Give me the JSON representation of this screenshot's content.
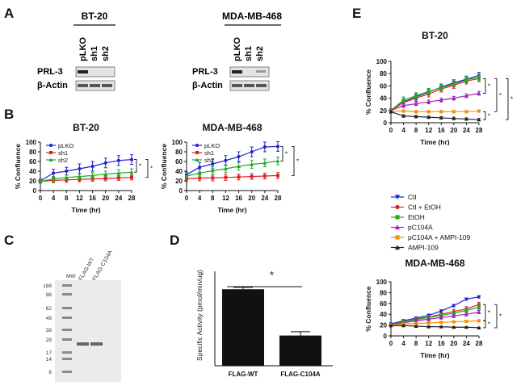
{
  "figure": {
    "panel_labels": [
      "A",
      "B",
      "C",
      "D",
      "E"
    ],
    "panelA": {
      "blots": [
        {
          "cell_line": "BT-20",
          "lanes": [
            "pLKO",
            "sh1",
            "sh2"
          ],
          "rows": [
            "PRL-3",
            "β-Actin"
          ]
        },
        {
          "cell_line": "MDA-MB-468",
          "lanes": [
            "pLKO",
            "sh1",
            "sh2"
          ],
          "rows": [
            "PRL-3",
            "β-Actin"
          ]
        }
      ]
    },
    "panelC": {
      "lane_labels": [
        "MW",
        "FLAG-WT",
        "FLAG-C104A"
      ],
      "mw_markers": [
        "188",
        "98",
        "62",
        "49",
        "38",
        "28",
        "17",
        "14",
        "6"
      ]
    }
  },
  "chart_data": [
    {
      "id": "B-left",
      "type": "line",
      "title": "BT-20",
      "xlabel": "Time (hr)",
      "ylabel": "% Confluence",
      "x": [
        0,
        4,
        8,
        12,
        16,
        20,
        24,
        28
      ],
      "xlim": [
        0,
        28
      ],
      "ylim": [
        0,
        100
      ],
      "xticks": [
        "0",
        "4",
        "8",
        "12",
        "16",
        "20",
        "24",
        "28"
      ],
      "yticks": [
        "0",
        "20",
        "40",
        "60",
        "80",
        "100"
      ],
      "series": [
        {
          "name": "pLKO",
          "color": "#1f1fd6",
          "marker": "circle",
          "values": [
            20,
            36,
            40,
            45,
            50,
            57,
            62,
            64
          ],
          "err": [
            4,
            8,
            8,
            10,
            10,
            10,
            10,
            10
          ]
        },
        {
          "name": "sh1",
          "color": "#e02020",
          "marker": "square",
          "values": [
            19,
            21,
            22,
            23,
            24,
            25,
            26,
            27
          ],
          "err": [
            4,
            5,
            5,
            5,
            5,
            5,
            5,
            5
          ]
        },
        {
          "name": "sh2",
          "color": "#22aa22",
          "marker": "triangle",
          "values": [
            19,
            24,
            27,
            29,
            31,
            34,
            36,
            38
          ],
          "err": [
            4,
            5,
            5,
            5,
            6,
            6,
            7,
            7
          ]
        }
      ],
      "significance": [
        "*",
        "*"
      ]
    },
    {
      "id": "B-right",
      "type": "line",
      "title": "MDA-MB-468",
      "xlabel": "Time (hr)",
      "ylabel": "% Confluence",
      "x": [
        0,
        4,
        8,
        12,
        16,
        20,
        24,
        28
      ],
      "xlim": [
        0,
        28
      ],
      "ylim": [
        0,
        100
      ],
      "xticks": [
        "0",
        "4",
        "8",
        "12",
        "16",
        "20",
        "24",
        "28"
      ],
      "yticks": [
        "0",
        "20",
        "40",
        "60",
        "80",
        "100"
      ],
      "series": [
        {
          "name": "pLKO",
          "color": "#1f1fd6",
          "marker": "circle",
          "values": [
            33,
            48,
            55,
            62,
            70,
            80,
            90,
            91
          ],
          "err": [
            5,
            10,
            10,
            10,
            10,
            10,
            10,
            10
          ]
        },
        {
          "name": "sh1",
          "color": "#e02020",
          "marker": "square",
          "values": [
            24,
            26,
            26,
            27,
            28,
            29,
            30,
            31
          ],
          "err": [
            5,
            6,
            6,
            6,
            6,
            6,
            6,
            6
          ]
        },
        {
          "name": "sh2",
          "color": "#22aa22",
          "marker": "triangle",
          "values": [
            30,
            36,
            41,
            45,
            50,
            54,
            57,
            61
          ],
          "err": [
            5,
            8,
            8,
            8,
            8,
            8,
            8,
            8
          ]
        }
      ],
      "significance": [
        "*",
        "*"
      ]
    },
    {
      "id": "D",
      "type": "bar",
      "categories": [
        "FLAG-WT",
        "FLAG-C104A"
      ],
      "values": [
        81,
        32
      ],
      "err": [
        2,
        4
      ],
      "ylabel": "Specific Activity (pmol/min/ug)",
      "ylim": [
        0,
        100
      ],
      "significance": "*"
    },
    {
      "id": "E-top",
      "type": "line",
      "title": "BT-20",
      "xlabel": "Time (hr)",
      "ylabel": "% Confluence",
      "x": [
        0,
        4,
        8,
        12,
        16,
        20,
        24,
        28
      ],
      "xlim": [
        0,
        28
      ],
      "ylim": [
        0,
        100
      ],
      "xticks": [
        "0",
        "4",
        "8",
        "12",
        "16",
        "20",
        "24",
        "28"
      ],
      "yticks": [
        "0",
        "20",
        "40",
        "60",
        "80",
        "100"
      ],
      "series": [
        {
          "name": "Ctl",
          "color": "#1f1fd6",
          "marker": "triangle-down",
          "values": [
            20,
            34,
            42,
            50,
            58,
            65,
            71,
            77
          ],
          "err": [
            3,
            5,
            5,
            5,
            5,
            5,
            5,
            5
          ]
        },
        {
          "name": "Ctl + EtOH",
          "color": "#e02020",
          "marker": "circle",
          "values": [
            20,
            33,
            40,
            47,
            55,
            61,
            68,
            72
          ],
          "err": [
            3,
            5,
            5,
            5,
            5,
            5,
            5,
            5
          ]
        },
        {
          "name": "EtOH",
          "color": "#22aa22",
          "marker": "square",
          "values": [
            20,
            37,
            44,
            51,
            57,
            63,
            70,
            74
          ],
          "err": [
            3,
            5,
            5,
            5,
            5,
            5,
            5,
            5
          ]
        },
        {
          "name": "pC104A",
          "color": "#a020c0",
          "marker": "triangle",
          "values": [
            20,
            28,
            31,
            34,
            37,
            40,
            44,
            48
          ],
          "err": [
            2,
            3,
            3,
            3,
            3,
            3,
            3,
            3
          ]
        },
        {
          "name": "pC104A + AMPI-109",
          "color": "#ff8c00",
          "marker": "square",
          "values": [
            19,
            19,
            18,
            18,
            18,
            18,
            18,
            19
          ],
          "err": [
            2,
            2,
            2,
            2,
            2,
            2,
            2,
            2
          ]
        },
        {
          "name": "AMPI-109",
          "color": "#222222",
          "marker": "triangle",
          "values": [
            18,
            11,
            10,
            9,
            8,
            7,
            6,
            5
          ],
          "err": [
            2,
            2,
            2,
            2,
            2,
            2,
            2,
            2
          ]
        }
      ],
      "significance": [
        "*",
        "*",
        "*",
        "*"
      ]
    },
    {
      "id": "E-bottom",
      "type": "line",
      "title": "MDA-MB-468",
      "xlabel": "Time (hr)",
      "ylabel": "% Confluence",
      "x": [
        0,
        4,
        8,
        12,
        16,
        20,
        24,
        28
      ],
      "xlim": [
        0,
        28
      ],
      "ylim": [
        0,
        100
      ],
      "xticks": [
        "0",
        "4",
        "8",
        "12",
        "16",
        "20",
        "24",
        "28"
      ],
      "yticks": [
        "0",
        "20",
        "40",
        "60",
        "80",
        "100"
      ],
      "series": [
        {
          "name": "Ctl",
          "color": "#1f1fd6",
          "marker": "triangle-down",
          "values": [
            22,
            28,
            33,
            38,
            46,
            56,
            68,
            72
          ],
          "err": [
            2,
            2,
            2,
            2,
            2,
            2,
            2,
            2
          ]
        },
        {
          "name": "Ctl + EtOH",
          "color": "#e02020",
          "marker": "circle",
          "values": [
            21,
            26,
            31,
            35,
            40,
            45,
            50,
            58
          ],
          "err": [
            2,
            3,
            3,
            3,
            3,
            4,
            4,
            4
          ]
        },
        {
          "name": "EtOH",
          "color": "#22aa22",
          "marker": "square",
          "values": [
            21,
            26,
            30,
            34,
            38,
            42,
            47,
            53
          ],
          "err": [
            2,
            3,
            3,
            3,
            3,
            4,
            4,
            4
          ]
        },
        {
          "name": "pC104A",
          "color": "#a020c0",
          "marker": "triangle",
          "values": [
            20,
            24,
            28,
            31,
            34,
            37,
            40,
            44
          ],
          "err": [
            2,
            3,
            3,
            3,
            3,
            3,
            3,
            3
          ]
        },
        {
          "name": "pC104A + AMPI-109",
          "color": "#ff8c00",
          "marker": "square",
          "values": [
            20,
            22,
            23,
            24,
            25,
            26,
            27,
            28
          ],
          "err": [
            1,
            1,
            1,
            1,
            1,
            1,
            1,
            1
          ]
        },
        {
          "name": "AMPI-109",
          "color": "#222222",
          "marker": "triangle",
          "values": [
            19,
            19,
            18,
            17,
            17,
            16,
            16,
            15
          ],
          "err": [
            1,
            1,
            1,
            1,
            1,
            1,
            1,
            1
          ]
        }
      ],
      "significance": [
        "*",
        "*",
        "*"
      ]
    }
  ]
}
